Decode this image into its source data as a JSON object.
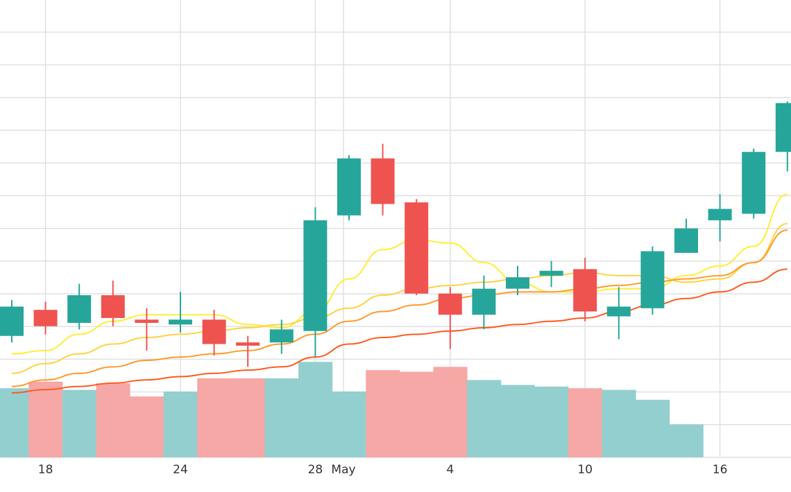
{
  "chart_data": {
    "type": "candlestick",
    "x_ticks": [
      {
        "label": "18",
        "day": 1
      },
      {
        "label": "24",
        "day": 5
      },
      {
        "label": "28",
        "day": 9
      },
      {
        "label": "May",
        "day": 10
      },
      {
        "label": "4",
        "day": 13
      },
      {
        "label": "10",
        "day": 17
      },
      {
        "label": "16",
        "day": 21
      }
    ],
    "ylim": [
      0,
      100
    ],
    "candles": [
      {
        "day": 0,
        "open": 47.5,
        "close": 56.5,
        "high": 58.5,
        "low": 45.5
      },
      {
        "day": 1,
        "open": 55.5,
        "close": 50.5,
        "high": 58,
        "low": 48
      },
      {
        "day": 2,
        "open": 51.5,
        "close": 60,
        "high": 63.5,
        "low": 49.5
      },
      {
        "day": 3,
        "open": 60,
        "close": 53,
        "high": 64.5,
        "low": 50.5
      },
      {
        "day": 4,
        "open": 52.5,
        "close": 51.5,
        "high": 56,
        "low": 43
      },
      {
        "day": 5,
        "open": 51,
        "close": 52.5,
        "high": 61,
        "low": 48.5
      },
      {
        "day": 6,
        "open": 52.5,
        "close": 45,
        "high": 55.5,
        "low": 41.5
      },
      {
        "day": 7,
        "open": 45.5,
        "close": 44.5,
        "high": 47.5,
        "low": 38
      },
      {
        "day": 8,
        "open": 45.5,
        "close": 49.5,
        "high": 52.5,
        "low": 42
      },
      {
        "day": 9,
        "open": 49,
        "close": 83,
        "high": 87,
        "low": 41
      },
      {
        "day": 10,
        "open": 84.5,
        "close": 102,
        "high": 103,
        "low": 83
      },
      {
        "day": 11,
        "open": 102,
        "close": 88,
        "high": 106.5,
        "low": 84.5
      },
      {
        "day": 12,
        "open": 88.5,
        "close": 60.5,
        "high": 89.5,
        "low": 60
      },
      {
        "day": 13,
        "open": 60.5,
        "close": 54,
        "high": 62.5,
        "low": 43.5
      },
      {
        "day": 14,
        "open": 54,
        "close": 62,
        "high": 66,
        "low": 49.5
      },
      {
        "day": 15,
        "open": 62,
        "close": 65.5,
        "high": 69,
        "low": 60
      },
      {
        "day": 16,
        "open": 66,
        "close": 67.5,
        "high": 70.5,
        "low": 62.5
      },
      {
        "day": 17,
        "open": 68,
        "close": 55,
        "high": 71.5,
        "low": 52
      },
      {
        "day": 18,
        "open": 53.5,
        "close": 56.5,
        "high": 62.5,
        "low": 46.5
      },
      {
        "day": 19,
        "open": 56,
        "close": 73.5,
        "high": 75,
        "low": 54
      },
      {
        "day": 20,
        "open": 73,
        "close": 80.5,
        "high": 83.5,
        "low": 73
      },
      {
        "day": 21,
        "open": 83,
        "close": 86.5,
        "high": 91,
        "low": 76.5
      },
      {
        "day": 22,
        "open": 85,
        "close": 104,
        "high": 105,
        "low": 83.5
      },
      {
        "day": 23,
        "open": 104,
        "close": 119,
        "high": 119.5,
        "low": 98
      }
    ],
    "volume": [
      {
        "day": 0,
        "value": 21,
        "direction": "up"
      },
      {
        "day": 1,
        "value": 23,
        "direction": "down"
      },
      {
        "day": 2,
        "value": 20.5,
        "direction": "up"
      },
      {
        "day": 3,
        "value": 22.5,
        "direction": "down"
      },
      {
        "day": 4,
        "value": 18.5,
        "direction": "down"
      },
      {
        "day": 5,
        "value": 20,
        "direction": "up"
      },
      {
        "day": 6,
        "value": 24,
        "direction": "down"
      },
      {
        "day": 7,
        "value": 24,
        "direction": "down"
      },
      {
        "day": 8,
        "value": 24,
        "direction": "up"
      },
      {
        "day": 9,
        "value": 29,
        "direction": "up"
      },
      {
        "day": 10,
        "value": 20,
        "direction": "up"
      },
      {
        "day": 11,
        "value": 26.5,
        "direction": "down"
      },
      {
        "day": 12,
        "value": 26,
        "direction": "down"
      },
      {
        "day": 13,
        "value": 27.5,
        "direction": "down"
      },
      {
        "day": 14,
        "value": 23.5,
        "direction": "up"
      },
      {
        "day": 15,
        "value": 22,
        "direction": "up"
      },
      {
        "day": 16,
        "value": 21.5,
        "direction": "up"
      },
      {
        "day": 17,
        "value": 21,
        "direction": "down"
      },
      {
        "day": 18,
        "value": 20.5,
        "direction": "up"
      },
      {
        "day": 19,
        "value": 17.5,
        "direction": "up"
      },
      {
        "day": 20,
        "value": 10,
        "direction": "up"
      }
    ],
    "moving_averages": [
      {
        "color": "#FFEE33",
        "values": [
          42,
          43,
          48,
          52,
          54,
          54,
          54,
          51,
          50,
          55,
          65,
          74,
          77,
          76,
          70,
          64,
          61,
          61,
          62,
          62,
          66,
          69,
          75,
          91
        ]
      },
      {
        "color": "#FFD23F",
        "values": [
          36,
          39,
          42,
          45,
          47,
          48,
          49,
          50,
          51,
          53,
          56,
          60,
          62,
          63,
          64,
          65,
          66,
          67,
          66,
          66,
          64,
          65,
          70,
          82
        ]
      },
      {
        "color": "#FF9A2B",
        "values": [
          32,
          34,
          36,
          38,
          40,
          41,
          42,
          43,
          45,
          48,
          52,
          55,
          57,
          59,
          60,
          61,
          61,
          62,
          63,
          64,
          65,
          66,
          70,
          80
        ]
      },
      {
        "color": "#FF5A1F",
        "values": [
          30,
          31,
          32,
          33,
          34,
          35,
          36,
          37,
          38,
          41,
          45,
          47,
          48,
          49,
          50,
          51,
          52,
          53,
          55,
          57,
          59,
          61,
          64,
          68
        ]
      }
    ],
    "colors": {
      "up": "#26A69A",
      "down": "#EF5350",
      "volume_up": "#94CFCF",
      "volume_down": "#F5A8A5",
      "grid": "#E0E0E0"
    },
    "grid": true
  }
}
